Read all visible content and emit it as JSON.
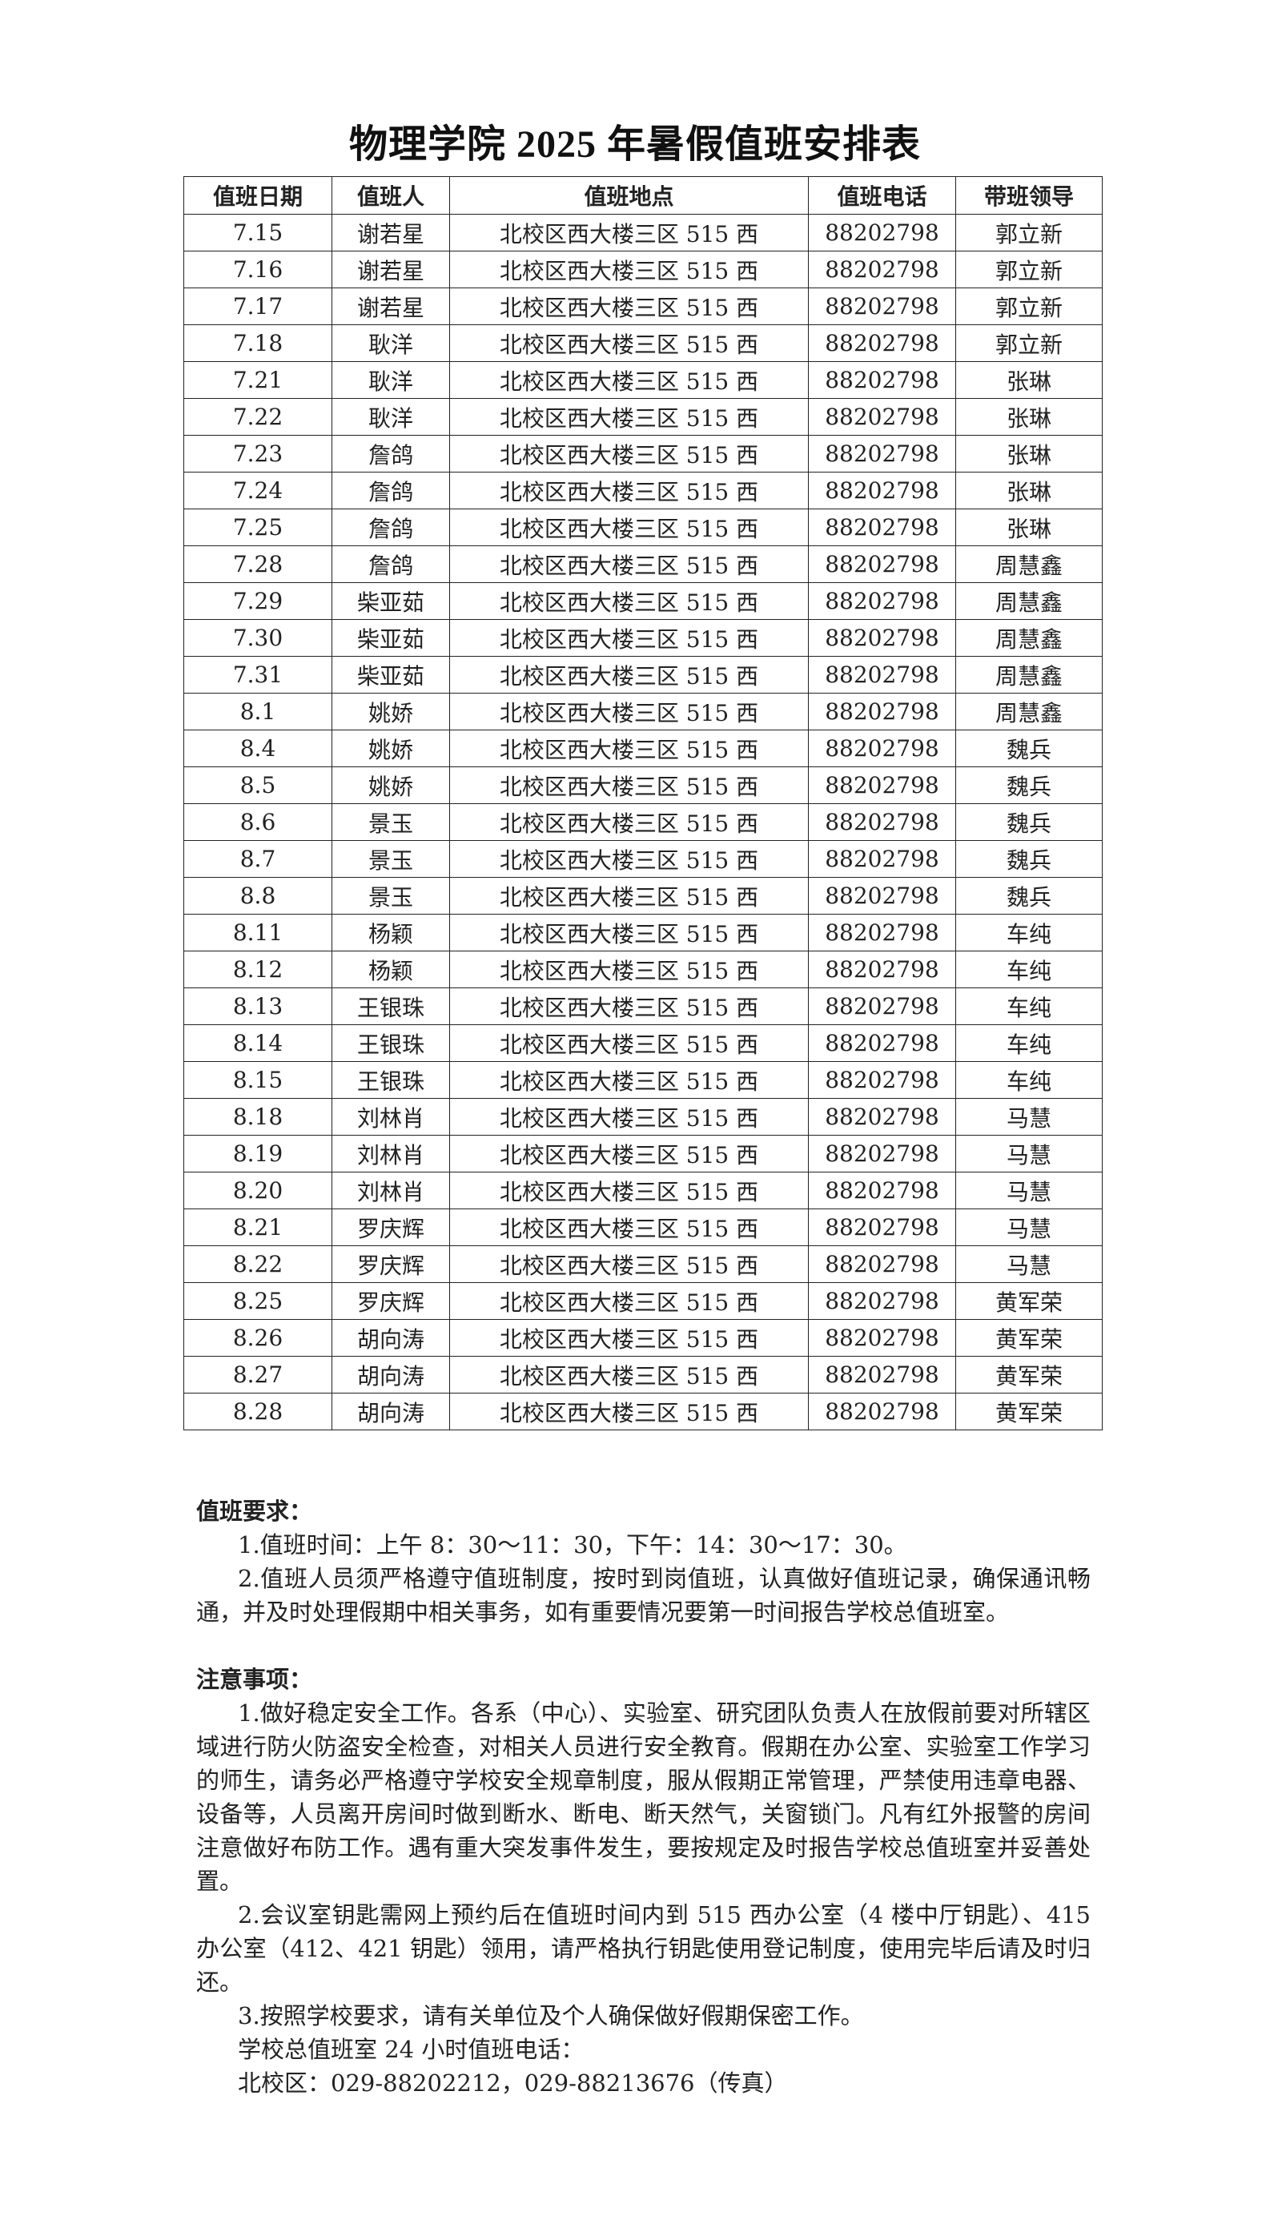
{
  "title": "物理学院 2025 年暑假值班安排表",
  "table": {
    "headers": [
      "值班日期",
      "值班人",
      "值班地点",
      "值班电话",
      "带班领导"
    ],
    "rows": [
      [
        "7.15",
        "谢若星",
        "北校区西大楼三区 515 西",
        "88202798",
        "郭立新"
      ],
      [
        "7.16",
        "谢若星",
        "北校区西大楼三区 515 西",
        "88202798",
        "郭立新"
      ],
      [
        "7.17",
        "谢若星",
        "北校区西大楼三区 515 西",
        "88202798",
        "郭立新"
      ],
      [
        "7.18",
        "耿洋",
        "北校区西大楼三区 515 西",
        "88202798",
        "郭立新"
      ],
      [
        "7.21",
        "耿洋",
        "北校区西大楼三区 515 西",
        "88202798",
        "张琳"
      ],
      [
        "7.22",
        "耿洋",
        "北校区西大楼三区 515 西",
        "88202798",
        "张琳"
      ],
      [
        "7.23",
        "詹鸽",
        "北校区西大楼三区 515 西",
        "88202798",
        "张琳"
      ],
      [
        "7.24",
        "詹鸽",
        "北校区西大楼三区 515 西",
        "88202798",
        "张琳"
      ],
      [
        "7.25",
        "詹鸽",
        "北校区西大楼三区 515 西",
        "88202798",
        "张琳"
      ],
      [
        "7.28",
        "詹鸽",
        "北校区西大楼三区 515 西",
        "88202798",
        "周慧鑫"
      ],
      [
        "7.29",
        "柴亚茹",
        "北校区西大楼三区 515 西",
        "88202798",
        "周慧鑫"
      ],
      [
        "7.30",
        "柴亚茹",
        "北校区西大楼三区 515 西",
        "88202798",
        "周慧鑫"
      ],
      [
        "7.31",
        "柴亚茹",
        "北校区西大楼三区 515 西",
        "88202798",
        "周慧鑫"
      ],
      [
        "8.1",
        "姚娇",
        "北校区西大楼三区 515 西",
        "88202798",
        "周慧鑫"
      ],
      [
        "8.4",
        "姚娇",
        "北校区西大楼三区 515 西",
        "88202798",
        "魏兵"
      ],
      [
        "8.5",
        "姚娇",
        "北校区西大楼三区 515 西",
        "88202798",
        "魏兵"
      ],
      [
        "8.6",
        "景玉",
        "北校区西大楼三区 515 西",
        "88202798",
        "魏兵"
      ],
      [
        "8.7",
        "景玉",
        "北校区西大楼三区 515 西",
        "88202798",
        "魏兵"
      ],
      [
        "8.8",
        "景玉",
        "北校区西大楼三区 515 西",
        "88202798",
        "魏兵"
      ],
      [
        "8.11",
        "杨颖",
        "北校区西大楼三区 515 西",
        "88202798",
        "车纯"
      ],
      [
        "8.12",
        "杨颖",
        "北校区西大楼三区 515 西",
        "88202798",
        "车纯"
      ],
      [
        "8.13",
        "王银珠",
        "北校区西大楼三区 515 西",
        "88202798",
        "车纯"
      ],
      [
        "8.14",
        "王银珠",
        "北校区西大楼三区 515 西",
        "88202798",
        "车纯"
      ],
      [
        "8.15",
        "王银珠",
        "北校区西大楼三区 515 西",
        "88202798",
        "车纯"
      ],
      [
        "8.18",
        "刘林肖",
        "北校区西大楼三区 515 西",
        "88202798",
        "马慧"
      ],
      [
        "8.19",
        "刘林肖",
        "北校区西大楼三区 515 西",
        "88202798",
        "马慧"
      ],
      [
        "8.20",
        "刘林肖",
        "北校区西大楼三区 515 西",
        "88202798",
        "马慧"
      ],
      [
        "8.21",
        "罗庆辉",
        "北校区西大楼三区 515 西",
        "88202798",
        "马慧"
      ],
      [
        "8.22",
        "罗庆辉",
        "北校区西大楼三区 515 西",
        "88202798",
        "马慧"
      ],
      [
        "8.25",
        "罗庆辉",
        "北校区西大楼三区 515 西",
        "88202798",
        "黄军荣"
      ],
      [
        "8.26",
        "胡向涛",
        "北校区西大楼三区 515 西",
        "88202798",
        "黄军荣"
      ],
      [
        "8.27",
        "胡向涛",
        "北校区西大楼三区 515 西",
        "88202798",
        "黄军荣"
      ],
      [
        "8.28",
        "胡向涛",
        "北校区西大楼三区 515 西",
        "88202798",
        "黄军荣"
      ]
    ]
  },
  "requirements": {
    "heading": "值班要求：",
    "items": [
      "1.值班时间：上午 8：30～11：30，下午：14：30～17：30。",
      "2.值班人员须严格遵守值班制度，按时到岗值班，认真做好值班记录，确保通讯畅通，并及时处理假期中相关事务，如有重要情况要第一时间报告学校总值班室。"
    ]
  },
  "notices": {
    "heading": "注意事项：",
    "items": [
      "1.做好稳定安全工作。各系（中心）、实验室、研究团队负责人在放假前要对所辖区域进行防火防盗安全检查，对相关人员进行安全教育。假期在办公室、实验室工作学习的师生，请务必严格遵守学校安全规章制度，服从假期正常管理，严禁使用违章电器、设备等，人员离开房间时做到断水、断电、断天然气，关窗锁门。凡有红外报警的房间注意做好布防工作。遇有重大突发事件发生，要按规定及时报告学校总值班室并妥善处置。",
      "2.会议室钥匙需网上预约后在值班时间内到 515 西办公室（4 楼中厅钥匙）、415 办公室（412、421 钥匙）领用，请严格执行钥匙使用登记制度，使用完毕后请及时归还。",
      "3.按照学校要求，请有关单位及个人确保做好假期保密工作。"
    ],
    "hotline_label": "学校总值班室 24 小时值班电话：",
    "hotline": "北校区：029-88202212，029-88213676（传真）"
  }
}
